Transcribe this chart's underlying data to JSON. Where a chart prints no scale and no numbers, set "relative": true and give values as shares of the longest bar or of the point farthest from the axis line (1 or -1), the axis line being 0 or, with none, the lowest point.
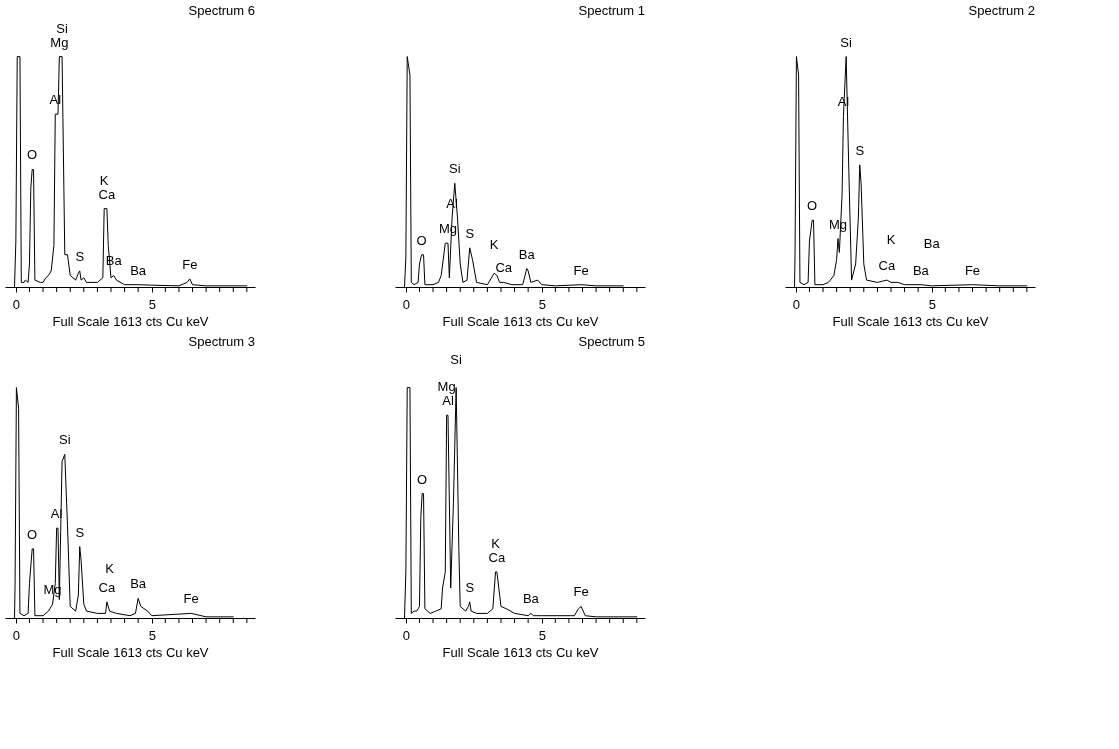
{
  "chart_data": [
    {
      "type": "line",
      "title": "Spectrum 6",
      "xlabel": "Full Scale 1613 cts Cu keV",
      "relative": true,
      "xlim": [
        -0.4,
        8.8
      ],
      "xticks": [
        0,
        {
          "value": 0.5,
          "label": null
        },
        {
          "value": 1,
          "label": null
        },
        {
          "value": 1.5,
          "label": null
        },
        {
          "value": 2,
          "label": null
        },
        {
          "value": 2.5,
          "label": null
        },
        {
          "value": 3,
          "label": null
        },
        {
          "value": 3.5,
          "label": null
        },
        {
          "value": 4,
          "label": null
        },
        {
          "value": 4.5,
          "label": null
        },
        5,
        {
          "value": 5.5,
          "label": null
        },
        {
          "value": 6,
          "label": null
        },
        {
          "value": 6.5,
          "label": null
        },
        {
          "value": 7,
          "label": null
        },
        {
          "value": 7.5,
          "label": null
        },
        {
          "value": 8,
          "label": null
        },
        {
          "value": 8.5,
          "label": null
        }
      ],
      "series": [
        {
          "color": "#000000",
          "x": [
            -0.05,
            0.0,
            0.05,
            0.15,
            0.2,
            0.3,
            0.35,
            0.45,
            0.5,
            0.55,
            0.6,
            0.65,
            0.7,
            0.9,
            1.0,
            1.1,
            1.2,
            1.3,
            1.4,
            1.45,
            1.55,
            1.6,
            1.7,
            1.8,
            1.9,
            2.0,
            2.2,
            2.3,
            2.35,
            2.4,
            2.5,
            2.6,
            3.0,
            3.2,
            3.25,
            3.35,
            3.4,
            3.5,
            3.6,
            3.7,
            4.0,
            4.5,
            5.0,
            6.0,
            6.3,
            6.4,
            6.5,
            7.0,
            8.5
          ],
          "values": [
            0,
            0.2,
            1,
            1,
            0.02,
            0.02,
            0.03,
            0.02,
            0.1,
            0.43,
            0.51,
            0.51,
            0.03,
            0.02,
            0.02,
            0.04,
            0.05,
            0.07,
            0.18,
            0.75,
            0.75,
            1,
            1,
            0.14,
            0.14,
            0.05,
            0.03,
            0.06,
            0.07,
            0.03,
            0.04,
            0.02,
            0.02,
            0.04,
            0.34,
            0.34,
            0.18,
            0.04,
            0.05,
            0.03,
            0.01,
            0.01,
            0.008,
            0.005,
            0.02,
            0.035,
            0.01,
            0.005,
            0.005
          ]
        }
      ],
      "annotations": [
        {
          "text": "Mg",
          "x": 1.6,
          "y": 1
        },
        {
          "text": "Al",
          "x": 1.45,
          "y": 0.75
        },
        {
          "text": "Si",
          "x": 1.7,
          "y": 1
        },
        {
          "text": "O",
          "x": 0.6,
          "y": 0.51
        },
        {
          "text": "Ca",
          "x": 3.35,
          "y": 0.34
        },
        {
          "text": "K",
          "x": 3.25,
          "y": 0.34
        },
        {
          "text": "S",
          "x": 2.35,
          "y": 0.07
        },
        {
          "text": "Ba",
          "x": 3.6,
          "y": 0.05
        },
        {
          "text": "Ba",
          "x": 4.5,
          "y": 0.01
        },
        {
          "text": "Fe",
          "x": 6.4,
          "y": 0.035
        }
      ]
    },
    {
      "type": "line",
      "title": "Spectrum 1",
      "xlabel": "Full Scale 1613 cts Cu keV",
      "relative": true,
      "xlim": [
        -0.4,
        8.8
      ],
      "xticks": [
        0,
        {
          "value": 0.5,
          "label": null
        },
        {
          "value": 1,
          "label": null
        },
        {
          "value": 1.5,
          "label": null
        },
        {
          "value": 2,
          "label": null
        },
        {
          "value": 2.5,
          "label": null
        },
        {
          "value": 3,
          "label": null
        },
        {
          "value": 3.5,
          "label": null
        },
        {
          "value": 4,
          "label": null
        },
        {
          "value": 4.5,
          "label": null
        },
        5,
        {
          "value": 5.5,
          "label": null
        },
        {
          "value": 6,
          "label": null
        },
        {
          "value": 6.5,
          "label": null
        },
        {
          "value": 7,
          "label": null
        },
        {
          "value": 7.5,
          "label": null
        },
        {
          "value": 8,
          "label": null
        },
        {
          "value": 8.5,
          "label": null
        }
      ],
      "series": [
        {
          "color": "#000000",
          "x": [
            -0.05,
            0.0,
            0.05,
            0.15,
            0.2,
            0.3,
            0.45,
            0.5,
            0.58,
            0.65,
            0.7,
            1.0,
            1.2,
            1.3,
            1.45,
            1.55,
            1.6,
            1.7,
            1.8,
            1.9,
            2.0,
            2.1,
            2.25,
            2.35,
            2.45,
            2.6,
            3.0,
            3.25,
            3.35,
            3.45,
            3.6,
            3.9,
            4.3,
            4.45,
            4.5,
            4.6,
            4.85,
            5.0,
            5.5,
            6.45,
            7.0,
            8.0
          ],
          "values": [
            0,
            0.13,
            1,
            0.92,
            0.02,
            0.01,
            0.02,
            0.1,
            0.14,
            0.14,
            0.01,
            0.01,
            0.02,
            0.05,
            0.19,
            0.19,
            0.04,
            0.3,
            0.45,
            0.3,
            0.1,
            0.02,
            0.03,
            0.17,
            0.12,
            0.02,
            0.01,
            0.06,
            0.05,
            0.02,
            0.02,
            0.01,
            0.01,
            0.08,
            0.07,
            0.02,
            0.03,
            0.01,
            0.005,
            0.01,
            0.005,
            0.005
          ]
        }
      ],
      "annotations": [
        {
          "text": "Si",
          "x": 1.8,
          "y": 0.45
        },
        {
          "text": "Al",
          "x": 1.7,
          "y": 0.3
        },
        {
          "text": "O",
          "x": 0.58,
          "y": 0.14
        },
        {
          "text": "Mg",
          "x": 1.55,
          "y": 0.19
        },
        {
          "text": "Ca",
          "x": 3.6,
          "y": 0.02
        },
        {
          "text": "K",
          "x": 3.25,
          "y": 0.06
        },
        {
          "text": "Ba",
          "x": 4.45,
          "y": 0.08
        },
        {
          "text": "S",
          "x": 2.35,
          "y": 0.17
        },
        {
          "text": "Fe",
          "x": 6.45,
          "y": 0.01
        }
      ]
    },
    {
      "type": "line",
      "title": "Spectrum 2",
      "xlabel": "Full Scale 1613 cts Cu keV",
      "relative": true,
      "xlim": [
        -0.4,
        8.8
      ],
      "xticks": [
        0,
        {
          "value": 0.5,
          "label": null
        },
        {
          "value": 1,
          "label": null
        },
        {
          "value": 1.5,
          "label": null
        },
        {
          "value": 2,
          "label": null
        },
        {
          "value": 2.5,
          "label": null
        },
        {
          "value": 3,
          "label": null
        },
        {
          "value": 3.5,
          "label": null
        },
        {
          "value": 4,
          "label": null
        },
        {
          "value": 4.5,
          "label": null
        },
        5,
        {
          "value": 5.5,
          "label": null
        },
        {
          "value": 6,
          "label": null
        },
        {
          "value": 6.5,
          "label": null
        },
        {
          "value": 7,
          "label": null
        },
        {
          "value": 7.5,
          "label": null
        },
        {
          "value": 8,
          "label": null
        },
        {
          "value": 8.5,
          "label": null
        }
      ],
      "series": [
        {
          "color": "#000000",
          "x": [
            -0.05,
            -0.03,
            0.02,
            0.1,
            0.15,
            0.3,
            0.45,
            0.5,
            0.6,
            0.65,
            0.7,
            1.0,
            1.2,
            1.4,
            1.5,
            1.55,
            1.6,
            1.7,
            1.75,
            1.85,
            1.95,
            2.05,
            2.2,
            2.3,
            2.35,
            2.4,
            2.5,
            2.6,
            3.0,
            3.35,
            3.5,
            3.75,
            4.0,
            4.6,
            5.0,
            6.5,
            7.5,
            8.5
          ],
          "values": [
            0,
            0.15,
            1,
            0.92,
            0.02,
            0.01,
            0.02,
            0.2,
            0.29,
            0.29,
            0.01,
            0.01,
            0.02,
            0.05,
            0.12,
            0.21,
            0.15,
            0.4,
            0.74,
            1,
            0.5,
            0.03,
            0.1,
            0.3,
            0.53,
            0.45,
            0.1,
            0.03,
            0.02,
            0.03,
            0.02,
            0.02,
            0.01,
            0.01,
            0.005,
            0.01,
            0.005,
            0.005
          ]
        }
      ],
      "annotations": [
        {
          "text": "Si",
          "x": 1.85,
          "y": 1
        },
        {
          "text": "Al",
          "x": 1.75,
          "y": 0.74
        },
        {
          "text": "S",
          "x": 2.35,
          "y": 0.53
        },
        {
          "text": "O",
          "x": 0.6,
          "y": 0.29
        },
        {
          "text": "Ca",
          "x": 3.35,
          "y": 0.03
        },
        {
          "text": "K",
          "x": 3.5,
          "y": 0.02
        },
        {
          "text": "Mg",
          "x": 1.55,
          "y": 0.21
        },
        {
          "text": "Fe",
          "x": 6.5,
          "y": 0.01
        },
        {
          "text": "Ba",
          "x": 4.6,
          "y": 0.01
        },
        {
          "text": "Ba",
          "x": 5.0,
          "y": 0.005
        }
      ]
    },
    {
      "type": "line",
      "title": "Spectrum 3",
      "xlabel": "Full Scale 1613 cts Cu keV",
      "relative": true,
      "xlim": [
        -0.4,
        8.8
      ],
      "xticks": [
        0,
        {
          "value": 0.5,
          "label": null
        },
        {
          "value": 1,
          "label": null
        },
        {
          "value": 1.5,
          "label": null
        },
        {
          "value": 2,
          "label": null
        },
        {
          "value": 2.5,
          "label": null
        },
        {
          "value": 3,
          "label": null
        },
        {
          "value": 3.5,
          "label": null
        },
        {
          "value": 4,
          "label": null
        },
        {
          "value": 4.5,
          "label": null
        },
        5,
        {
          "value": 5.5,
          "label": null
        },
        {
          "value": 6,
          "label": null
        },
        {
          "value": 6.5,
          "label": null
        },
        {
          "value": 7,
          "label": null
        },
        {
          "value": 7.5,
          "label": null
        },
        {
          "value": 8,
          "label": null
        },
        {
          "value": 8.5,
          "label": null
        }
      ],
      "series": [
        {
          "color": "#000000",
          "x": [
            -0.05,
            -0.03,
            0.02,
            0.1,
            0.15,
            0.3,
            0.45,
            0.5,
            0.6,
            0.65,
            0.7,
            1.0,
            1.2,
            1.35,
            1.45,
            1.5,
            1.55,
            1.6,
            1.7,
            1.8,
            1.9,
            2.0,
            2.2,
            2.3,
            2.35,
            2.4,
            2.5,
            2.6,
            3.0,
            3.3,
            3.35,
            3.45,
            3.7,
            4.2,
            4.4,
            4.5,
            4.6,
            4.85,
            5.0,
            6.45,
            7.0,
            8.0
          ],
          "values": [
            0,
            0.14,
            1,
            0.91,
            0.02,
            0.01,
            0.02,
            0.15,
            0.3,
            0.3,
            0.01,
            0.01,
            0.03,
            0.06,
            0.15,
            0.39,
            0.39,
            0.08,
            0.68,
            0.71,
            0.4,
            0.05,
            0.03,
            0.1,
            0.31,
            0.25,
            0.06,
            0.03,
            0.02,
            0.02,
            0.07,
            0.03,
            0.02,
            0.01,
            0.02,
            0.085,
            0.05,
            0.03,
            0.01,
            0.02,
            0.005,
            0.005
          ]
        }
      ],
      "annotations": [
        {
          "text": "Si",
          "x": 1.8,
          "y": 0.71
        },
        {
          "text": "Al",
          "x": 1.5,
          "y": 0.39
        },
        {
          "text": "O",
          "x": 0.6,
          "y": 0.3
        },
        {
          "text": "Mg",
          "x": 1.35,
          "y": 0.06
        },
        {
          "text": "Ca",
          "x": 3.35,
          "y": 0.07
        },
        {
          "text": "K",
          "x": 3.45,
          "y": 0.03
        },
        {
          "text": "S",
          "x": 2.35,
          "y": 0.31
        },
        {
          "text": "Ba",
          "x": 4.5,
          "y": 0.085
        },
        {
          "text": "Fe",
          "x": 6.45,
          "y": 0.02
        }
      ]
    },
    {
      "type": "line",
      "title": "Spectrum 5",
      "xlabel": "Full Scale 1613 cts Cu keV",
      "relative": true,
      "xlim": [
        -0.4,
        8.8
      ],
      "xticks": [
        0,
        {
          "value": 0.5,
          "label": null
        },
        {
          "value": 1,
          "label": null
        },
        {
          "value": 1.5,
          "label": null
        },
        {
          "value": 2,
          "label": null
        },
        {
          "value": 2.5,
          "label": null
        },
        {
          "value": 3,
          "label": null
        },
        {
          "value": 3.5,
          "label": null
        },
        {
          "value": 4,
          "label": null
        },
        {
          "value": 4.5,
          "label": null
        },
        5,
        {
          "value": 5.5,
          "label": null
        },
        {
          "value": 6,
          "label": null
        },
        {
          "value": 6.5,
          "label": null
        },
        {
          "value": 7,
          "label": null
        },
        {
          "value": 7.5,
          "label": null
        },
        {
          "value": 8,
          "label": null
        },
        {
          "value": 8.5,
          "label": null
        }
      ],
      "series": [
        {
          "color": "#000000",
          "x": [
            -0.05,
            0.0,
            0.05,
            0.15,
            0.2,
            0.3,
            0.4,
            0.45,
            0.5,
            0.55,
            0.6,
            0.65,
            0.7,
            0.9,
            1.1,
            1.3,
            1.35,
            1.45,
            1.5,
            1.55,
            1.65,
            1.75,
            1.85,
            1.95,
            2.0,
            2.2,
            2.3,
            2.35,
            2.4,
            2.6,
            3.0,
            3.2,
            3.3,
            3.35,
            3.45,
            3.5,
            3.7,
            4.0,
            4.5,
            4.6,
            4.7,
            5.0,
            6.2,
            6.35,
            6.45,
            6.6,
            7.0,
            8.5
          ],
          "values": [
            0,
            0.2,
            1,
            1,
            0.02,
            0.03,
            0.03,
            0.04,
            0.05,
            0.44,
            0.54,
            0.54,
            0.04,
            0.02,
            0.03,
            0.04,
            0.13,
            0.2,
            0.88,
            0.88,
            0.13,
            0.5,
            1,
            0.3,
            0.05,
            0.03,
            0.05,
            0.07,
            0.03,
            0.02,
            0.02,
            0.04,
            0.2,
            0.2,
            0.1,
            0.05,
            0.04,
            0.02,
            0.01,
            0.02,
            0.01,
            0.01,
            0.01,
            0.04,
            0.05,
            0.01,
            0.005,
            0.005
          ]
        }
      ],
      "annotations": [
        {
          "text": "Al",
          "x": 1.55,
          "y": 0.88
        },
        {
          "text": "Mg",
          "x": 1.5,
          "y": 0.88
        },
        {
          "text": "Si",
          "x": 1.85,
          "y": 1
        },
        {
          "text": "O",
          "x": 0.6,
          "y": 0.54
        },
        {
          "text": "Ca",
          "x": 3.35,
          "y": 0.2
        },
        {
          "text": "K",
          "x": 3.3,
          "y": 0.2
        },
        {
          "text": "S",
          "x": 2.35,
          "y": 0.07
        },
        {
          "text": "Ba",
          "x": 4.6,
          "y": 0.02
        },
        {
          "text": "Fe",
          "x": 6.45,
          "y": 0.05
        }
      ]
    }
  ]
}
